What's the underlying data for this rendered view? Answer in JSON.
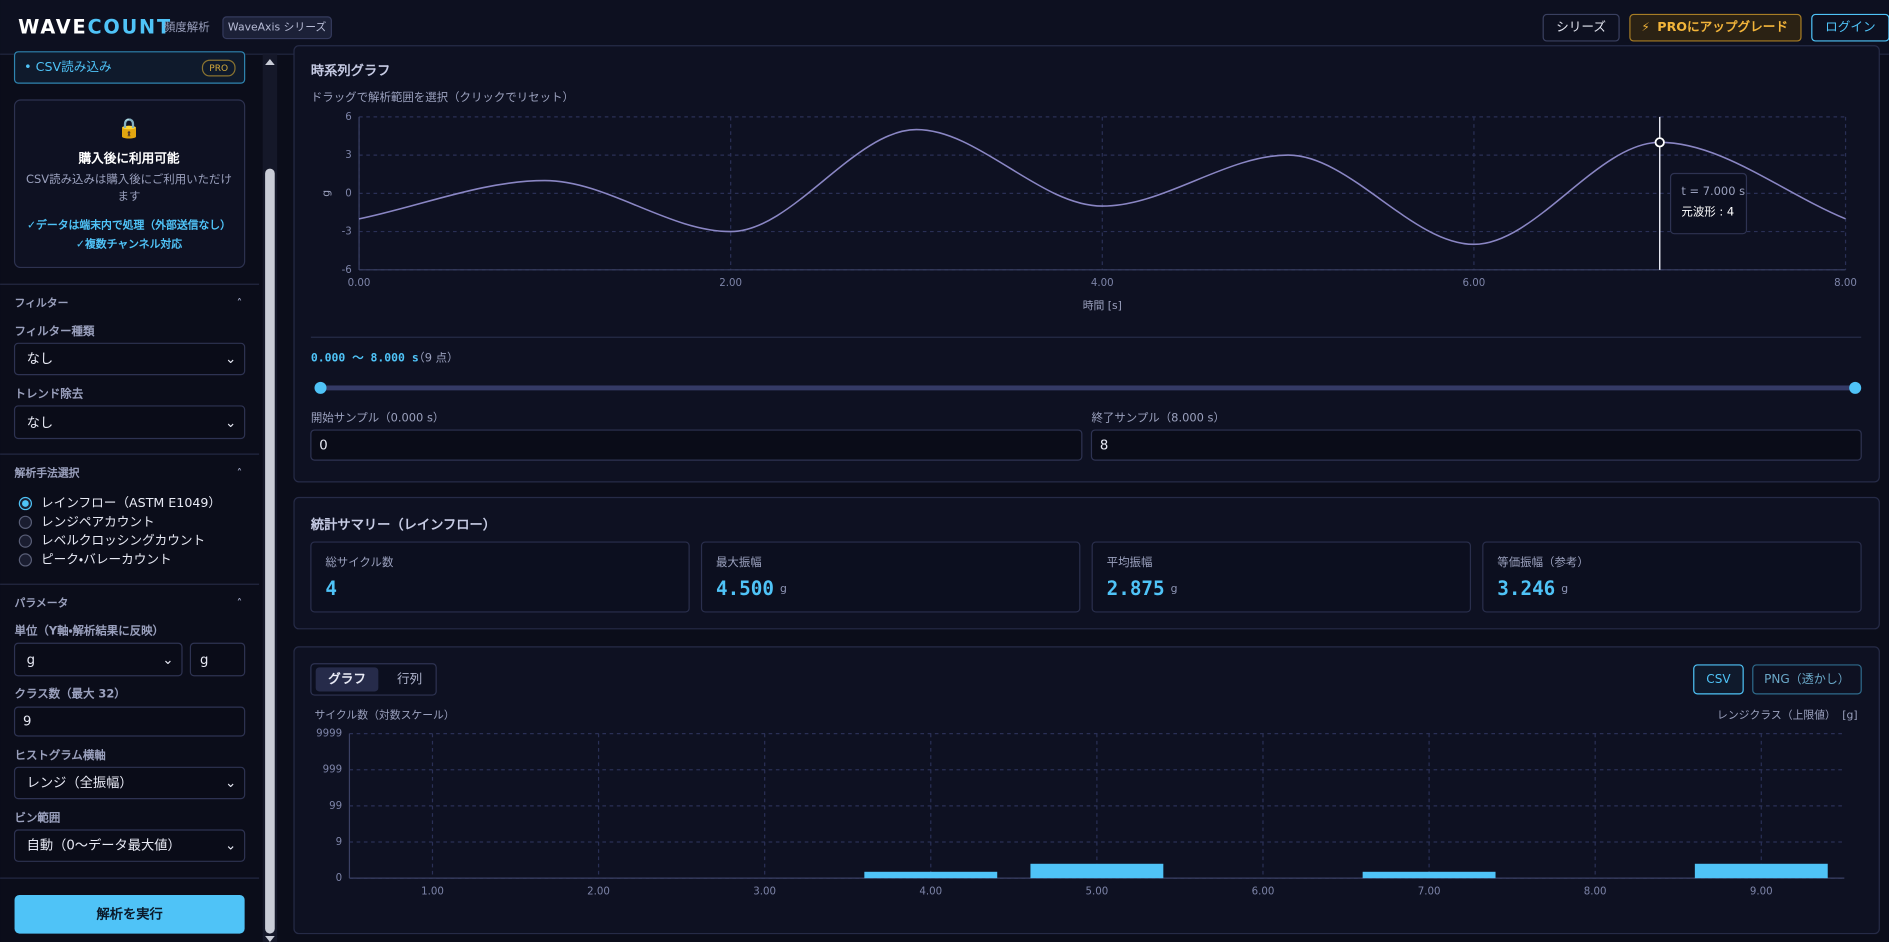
{
  "header": {
    "logo_a": "WAVE",
    "logo_b": "COUNT",
    "subtitle": "頻度解析",
    "badge": "WaveAxis シリーズ",
    "buttons": [
      "シリーズ",
      "PROにアップグレード",
      "ログイン"
    ]
  },
  "sidebar": {
    "csv": {
      "label": "• CSV読み込み",
      "badge": "PRO",
      "lock_title": "購入後に利用可能",
      "lock_text": [
        "CSV読み込みは購入後にご利用いただけ",
        "ます"
      ],
      "features": [
        "✓データは端末内で処理（外部送信なし）",
        "✓複数チャンネル対応"
      ]
    },
    "filter": {
      "title": "フィルター",
      "type_label": "フィルター種類",
      "type_value": "なし",
      "detrend_label": "トレンド除去",
      "detrend_value": "なし"
    },
    "method": {
      "title": "解析手法選択",
      "options": [
        "レインフロー（ASTM E1049）",
        "レンジペアカウント",
        "レベルクロッシングカウント",
        "ピーク・バレーカウント"
      ],
      "selected": 0
    },
    "params": {
      "title": "パラメータ",
      "unit_label": "単位（Y軸・解析結果に反映）",
      "unit_select": "g",
      "unit_input": "g",
      "classes_label": "クラス数（最大 32）",
      "classes_value": "9",
      "hist_axis_label": "ヒストグラム横軸",
      "hist_axis_value": "レンジ（全振幅）",
      "bin_range_label": "ビン範囲",
      "bin_range_value": "自動（0〜データ最大値）"
    },
    "run_button": "解析を実行"
  },
  "range": {
    "text": "0.000 〜 8.000 s",
    "points": "（9 点）",
    "start_label": "開始サンプル（0.000 s）",
    "start": 0,
    "end_label": "終了サンプル（8.000 s）",
    "end": 8
  },
  "stats": {
    "title": "統計サマリー（レインフロー）",
    "items": [
      {
        "label": "総サイクル数",
        "value": "4"
      },
      {
        "label": "最大振幅",
        "value": "4.500",
        "unit": "g"
      },
      {
        "label": "平均振幅",
        "value": "2.875",
        "unit": "g"
      },
      {
        "label": "等価振幅（参考）",
        "value": "3.246",
        "unit": "g"
      }
    ]
  },
  "hist_panel": {
    "tabs": [
      "グラフ",
      "行列"
    ],
    "active_tab": 0,
    "buttons": [
      "CSV",
      "PNG（透かし）"
    ]
  },
  "chart_data": [
    {
      "type": "line",
      "title": "時系列グラフ",
      "subtitle": "ドラッグで解析範囲を選択（クリックでリセット）",
      "x_label": "時間 [s]",
      "y_label": "g",
      "color": "#8a86c4",
      "x": [
        0,
        1,
        2,
        3,
        4,
        5,
        6,
        7,
        8
      ],
      "values": [
        -2,
        1,
        -3,
        5,
        -1,
        3,
        -4,
        4,
        -2
      ],
      "xlim": [
        0,
        8
      ],
      "xticks": [
        {
          "value": 0,
          "label": "0.00"
        },
        {
          "value": 2,
          "label": "2.00"
        },
        {
          "value": 4,
          "label": "4.00"
        },
        {
          "value": 6,
          "label": "6.00"
        },
        {
          "value": 8,
          "label": "8.00"
        }
      ],
      "ylim": [
        -6,
        6
      ],
      "yticks": [
        -6,
        -3,
        0,
        3,
        6
      ],
      "grid": true,
      "tooltip": {
        "x": 7,
        "lines": [
          "t = 7.000 s",
          "元波形 : 4"
        ]
      }
    },
    {
      "type": "bar",
      "y_label": "サイクル数（対数スケール）",
      "x_label": "レンジクラス（上限値）",
      "x_unit": "[g]",
      "color": "#4fc3f7",
      "log_scale": true,
      "grid": true,
      "x": [
        1,
        2,
        3,
        4,
        5,
        6,
        7,
        8,
        9
      ],
      "values": [
        0,
        0,
        0,
        0.5,
        1.5,
        0,
        0.5,
        0,
        1.5
      ],
      "xlim": [
        0.5,
        9.5
      ],
      "xticks": [
        {
          "value": 1,
          "label": "1.00"
        },
        {
          "value": 2,
          "label": "2.00"
        },
        {
          "value": 3,
          "label": "3.00"
        },
        {
          "value": 4,
          "label": "4.00"
        },
        {
          "value": 5,
          "label": "5.00"
        },
        {
          "value": 6,
          "label": "6.00"
        },
        {
          "value": 7,
          "label": "7.00"
        },
        {
          "value": 8,
          "label": "8.00"
        },
        {
          "value": 9,
          "label": "9.00"
        }
      ],
      "ylim": [
        0,
        9999
      ],
      "yticks": [
        0,
        9,
        99,
        999,
        9999
      ]
    }
  ]
}
